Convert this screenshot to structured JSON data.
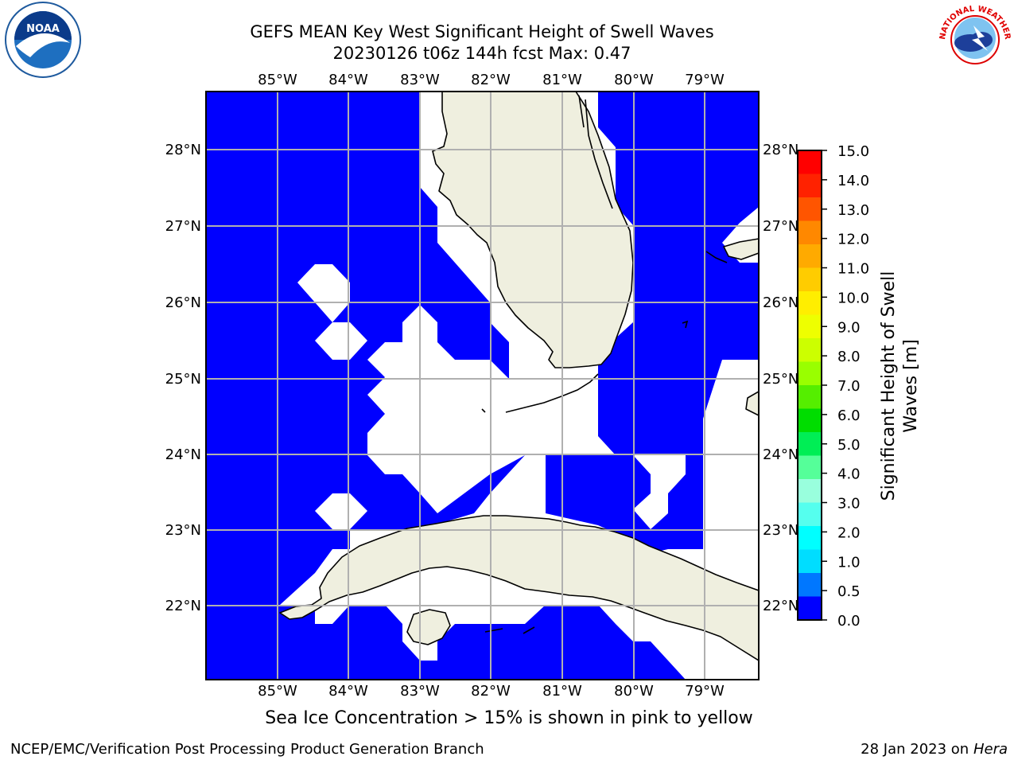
{
  "header": {
    "title_line1": "GEFS MEAN Key West Significant Height of Swell Waves",
    "title_line2": "20230126 t06z 144h fcst   Max: 0.47"
  },
  "logos": {
    "left": "NOAA",
    "right": "NATIONAL WEATHER SERVICE"
  },
  "map": {
    "lon_labels": [
      "85°W",
      "84°W",
      "83°W",
      "82°W",
      "81°W",
      "80°W",
      "79°W"
    ],
    "lat_labels": [
      "28°N",
      "27°N",
      "26°N",
      "25°N",
      "24°N",
      "23°N",
      "22°N"
    ],
    "ocean_color": "#0000ff",
    "land_color": "#efefdf",
    "grid_color": "#b0b0b0"
  },
  "colorbar": {
    "label": "Significant Height of Swell Waves [m]",
    "label_line1": "Significant Height of Swell",
    "label_line2": "Waves [m]",
    "ticks": [
      "15.0",
      "14.0",
      "13.0",
      "12.0",
      "11.0",
      "10.0",
      "9.0",
      "8.0",
      "7.0",
      "6.0",
      "5.0",
      "4.0",
      "3.0",
      "2.0",
      "1.0",
      "0.5",
      "0.0"
    ],
    "colors_top_to_bottom": [
      "#ff0000",
      "#ff2200",
      "#ff5500",
      "#ff8800",
      "#ffaa00",
      "#ffcc00",
      "#ffee00",
      "#eeff00",
      "#ccff00",
      "#99ff00",
      "#55ee00",
      "#00dd00",
      "#00ee55",
      "#55ff99",
      "#99ffdd",
      "#55ffee",
      "#00ffff",
      "#00ddff",
      "#0077ff",
      "#0000ff"
    ]
  },
  "caption": "Sea Ice Concentration > 15% is shown in pink to yellow",
  "footer": {
    "left": "NCEP/EMC/Verification Post Processing Product Generation Branch",
    "right_date": "28 Jan 2023 on ",
    "right_machine": "Hera"
  }
}
